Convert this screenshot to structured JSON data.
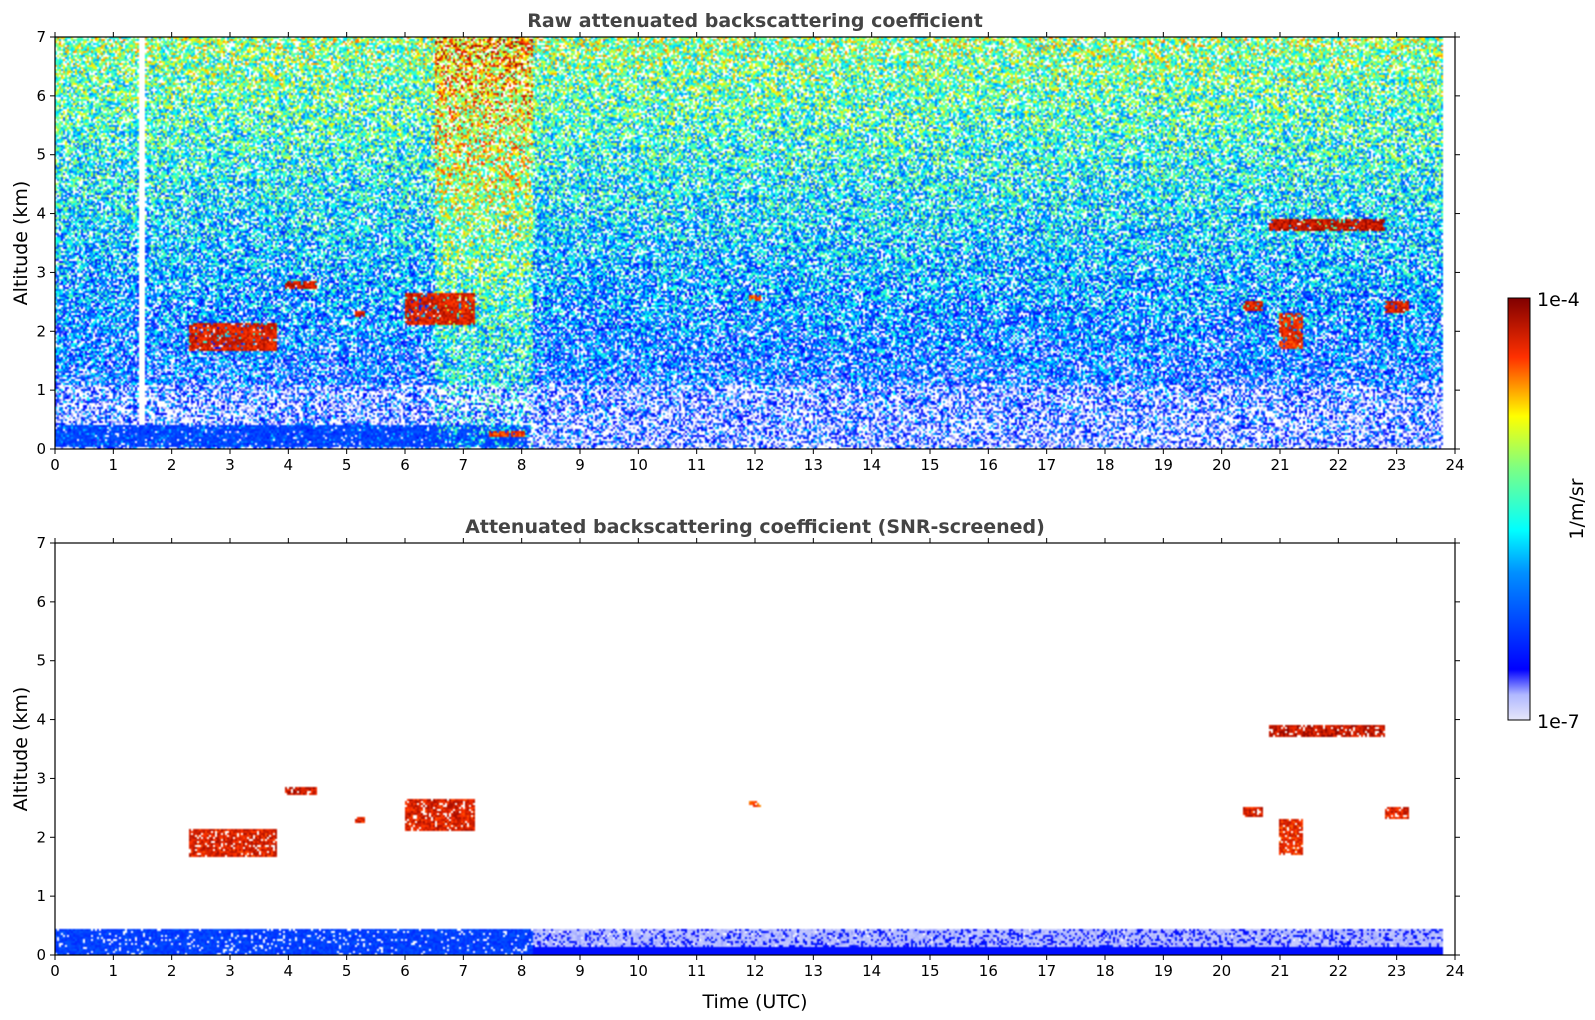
{
  "chart_data": [
    {
      "type": "heatmap",
      "title": "Raw attenuated backscattering coefficient",
      "xlabel": "",
      "ylabel": "Altitude (km)",
      "xlim": [
        0,
        24
      ],
      "ylim": [
        0,
        7
      ],
      "xticks": [
        "0",
        "1",
        "2",
        "3",
        "4",
        "5",
        "6",
        "7",
        "8",
        "9",
        "10",
        "11",
        "12",
        "13",
        "14",
        "15",
        "16",
        "17",
        "18",
        "19",
        "20",
        "21",
        "22",
        "23",
        "24"
      ],
      "yticks": [
        "0",
        "1",
        "2",
        "3",
        "4",
        "5",
        "6",
        "7"
      ],
      "noise_field": "dense speckle across whole panel",
      "features": [
        {
          "kind": "boundary_layer",
          "x": [
            0,
            8.1
          ],
          "y": [
            0.05,
            0.4
          ],
          "value": 3.0
        },
        {
          "kind": "cloud",
          "x": [
            2.3,
            3.8
          ],
          "y": [
            1.65,
            2.15
          ],
          "value": 4.8
        },
        {
          "kind": "cloud",
          "x": [
            3.95,
            4.5
          ],
          "y": [
            2.72,
            2.85
          ],
          "value": 4.9
        },
        {
          "kind": "cloud",
          "x": [
            5.15,
            5.3
          ],
          "y": [
            2.25,
            2.35
          ],
          "value": 4.8
        },
        {
          "kind": "cloud",
          "x": [
            6.0,
            7.2
          ],
          "y": [
            2.1,
            2.65
          ],
          "value": 4.8
        },
        {
          "kind": "cloud",
          "x": [
            7.45,
            8.05
          ],
          "y": [
            0.2,
            0.3
          ],
          "value": 4.6
        },
        {
          "kind": "cloud",
          "x": [
            11.9,
            12.1
          ],
          "y": [
            2.5,
            2.6
          ],
          "value": 4.5
        },
        {
          "kind": "cloud",
          "x": [
            20.8,
            22.8
          ],
          "y": [
            3.7,
            3.92
          ],
          "value": 4.95
        },
        {
          "kind": "cloud",
          "x": [
            20.35,
            20.7
          ],
          "y": [
            2.35,
            2.5
          ],
          "value": 4.8
        },
        {
          "kind": "cloud",
          "x": [
            21.0,
            21.4
          ],
          "y": [
            1.7,
            2.3
          ],
          "value": 4.7
        },
        {
          "kind": "cloud",
          "x": [
            22.8,
            23.2
          ],
          "y": [
            2.3,
            2.5
          ],
          "value": 4.8
        }
      ]
    },
    {
      "type": "heatmap",
      "title": "Attenuated backscattering coefficient (SNR-screened)",
      "xlabel": "Time (UTC)",
      "ylabel": "Altitude (km)",
      "xlim": [
        0,
        24
      ],
      "ylim": [
        0,
        7
      ],
      "xticks": [
        "0",
        "1",
        "2",
        "3",
        "4",
        "5",
        "6",
        "7",
        "8",
        "9",
        "10",
        "11",
        "12",
        "13",
        "14",
        "15",
        "16",
        "17",
        "18",
        "19",
        "20",
        "21",
        "22",
        "23",
        "24"
      ],
      "yticks": [
        "0",
        "1",
        "2",
        "3",
        "4",
        "5",
        "6",
        "7"
      ],
      "noise_field": "screened (background removed)",
      "features": [
        {
          "kind": "boundary_layer",
          "x": [
            0,
            23.8
          ],
          "y": [
            0.0,
            0.45
          ],
          "value": 2.0
        },
        {
          "kind": "cloud",
          "x": [
            2.3,
            3.8
          ],
          "y": [
            1.65,
            2.15
          ],
          "value": 4.8
        },
        {
          "kind": "cloud",
          "x": [
            3.95,
            4.5
          ],
          "y": [
            2.72,
            2.85
          ],
          "value": 4.9
        },
        {
          "kind": "cloud",
          "x": [
            5.15,
            5.3
          ],
          "y": [
            2.25,
            2.35
          ],
          "value": 4.8
        },
        {
          "kind": "cloud",
          "x": [
            6.0,
            7.2
          ],
          "y": [
            2.1,
            2.65
          ],
          "value": 4.8
        },
        {
          "kind": "cloud",
          "x": [
            11.9,
            12.1
          ],
          "y": [
            2.5,
            2.6
          ],
          "value": 4.5
        },
        {
          "kind": "cloud",
          "x": [
            20.8,
            22.8
          ],
          "y": [
            3.7,
            3.92
          ],
          "value": 4.95
        },
        {
          "kind": "cloud",
          "x": [
            20.35,
            20.7
          ],
          "y": [
            2.35,
            2.5
          ],
          "value": 4.8
        },
        {
          "kind": "cloud",
          "x": [
            21.0,
            21.4
          ],
          "y": [
            1.7,
            2.3
          ],
          "value": 4.7
        },
        {
          "kind": "cloud",
          "x": [
            22.8,
            23.2
          ],
          "y": [
            2.3,
            2.5
          ],
          "value": 4.8
        }
      ]
    }
  ],
  "colorbar": {
    "label": "1/m/sr",
    "max_label": "1e-4",
    "min_label": "1e-7",
    "range": [
      1e-07,
      0.0001
    ],
    "scale": "log",
    "colormap": "jet",
    "colors": [
      "#e6e6fa",
      "#0000ff",
      "#00ffff",
      "#ffff00",
      "#ff0000",
      "#800000"
    ]
  }
}
